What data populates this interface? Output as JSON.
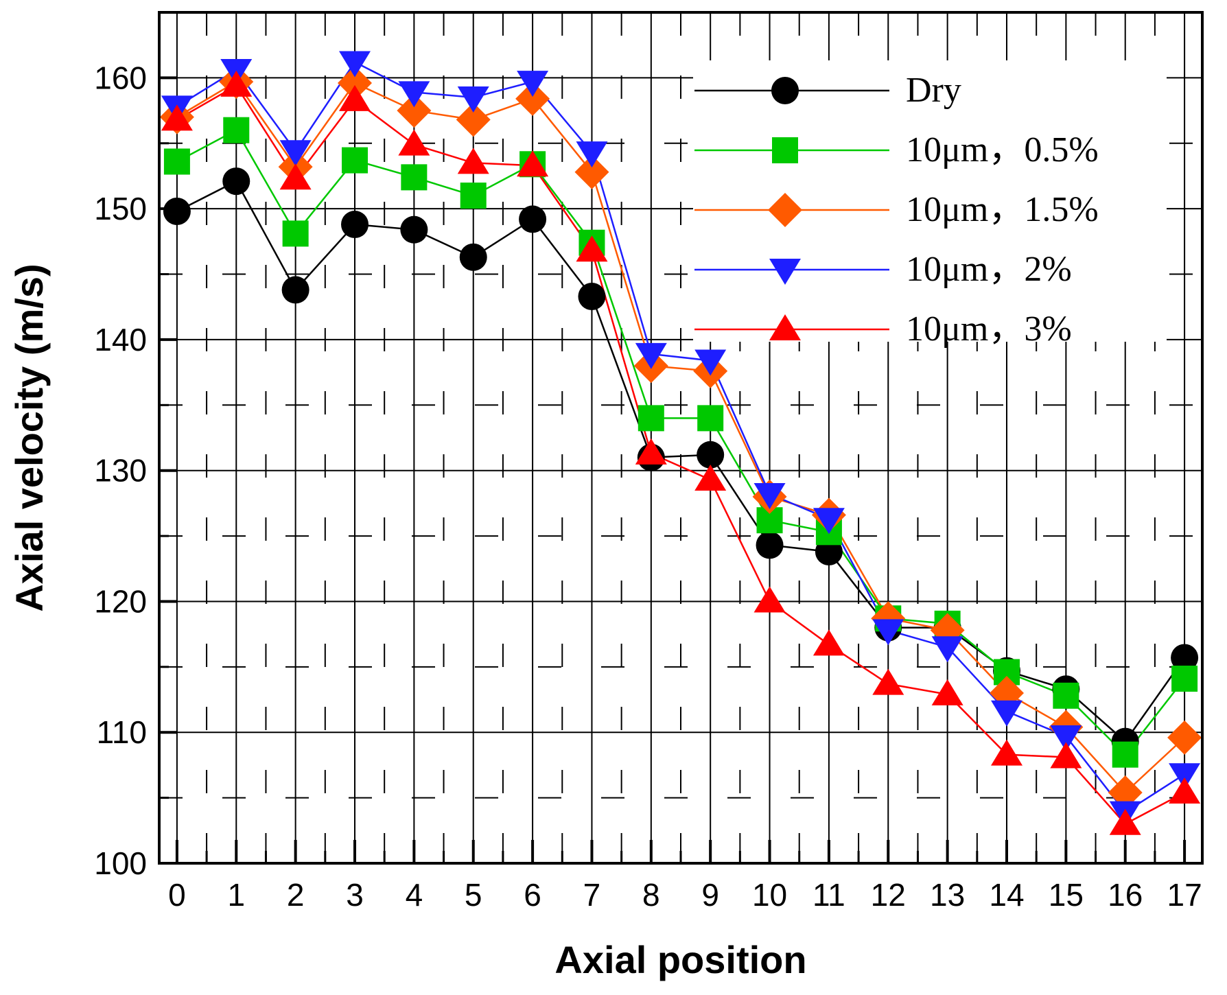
{
  "chart_data": {
    "type": "line",
    "title": "",
    "xlabel": "Axial position",
    "ylabel": "Axial velocity (m/s)",
    "categories": [
      "0",
      "1",
      "2",
      "3",
      "4",
      "5",
      "6",
      "7",
      "8",
      "9",
      "10",
      "11",
      "12",
      "13",
      "14",
      "15",
      "16",
      "17"
    ],
    "x": [
      0,
      1,
      2,
      3,
      4,
      5,
      6,
      7,
      8,
      9,
      10,
      11,
      12,
      13,
      14,
      15,
      16,
      17
    ],
    "xlim": [
      -0.3,
      17.3
    ],
    "ylim": [
      100,
      165
    ],
    "y_ticks": [
      100,
      110,
      120,
      130,
      140,
      150,
      160
    ],
    "y_tick_labels": [
      "100",
      "110",
      "120",
      "130",
      "140",
      "150",
      "160"
    ],
    "grid": true,
    "legend_position": "top-right",
    "series": [
      {
        "name": "Dry",
        "marker": "circle",
        "color": "#000000",
        "values": [
          149.8,
          152.1,
          143.8,
          148.8,
          148.4,
          146.3,
          149.2,
          143.3,
          131.0,
          131.2,
          124.3,
          123.8,
          118.0,
          118.0,
          114.7,
          113.3,
          109.3,
          115.7
        ]
      },
      {
        "name": "10μm，0.5%",
        "marker": "square",
        "color": "#00c800",
        "values": [
          153.6,
          156.0,
          148.1,
          153.7,
          152.4,
          151.0,
          153.4,
          147.4,
          134.0,
          134.0,
          126.2,
          125.3,
          118.7,
          118.3,
          114.6,
          112.8,
          108.3,
          114.1
        ]
      },
      {
        "name": "10μm，1.5%",
        "marker": "diamond",
        "color": "#ff5a00",
        "values": [
          157.0,
          159.7,
          153.2,
          159.6,
          157.5,
          156.8,
          158.4,
          152.8,
          138.0,
          137.6,
          128.0,
          126.6,
          118.7,
          117.8,
          113.0,
          110.4,
          105.4,
          109.6
        ]
      },
      {
        "name": "10μm，2%",
        "marker": "triangle-down",
        "color": "#1e1eff",
        "values": [
          157.8,
          160.6,
          154.4,
          161.2,
          158.9,
          158.5,
          159.7,
          154.3,
          138.9,
          138.4,
          128.2,
          126.3,
          117.8,
          116.5,
          111.6,
          109.7,
          103.9,
          106.8
        ]
      },
      {
        "name": "10μm，3%",
        "marker": "triangle-up",
        "color": "#ff0000",
        "values": [
          156.8,
          159.4,
          152.3,
          158.3,
          154.9,
          153.5,
          153.3,
          146.8,
          131.3,
          129.3,
          120.0,
          116.7,
          113.7,
          112.9,
          108.3,
          108.1,
          103.0,
          105.4
        ]
      }
    ]
  }
}
